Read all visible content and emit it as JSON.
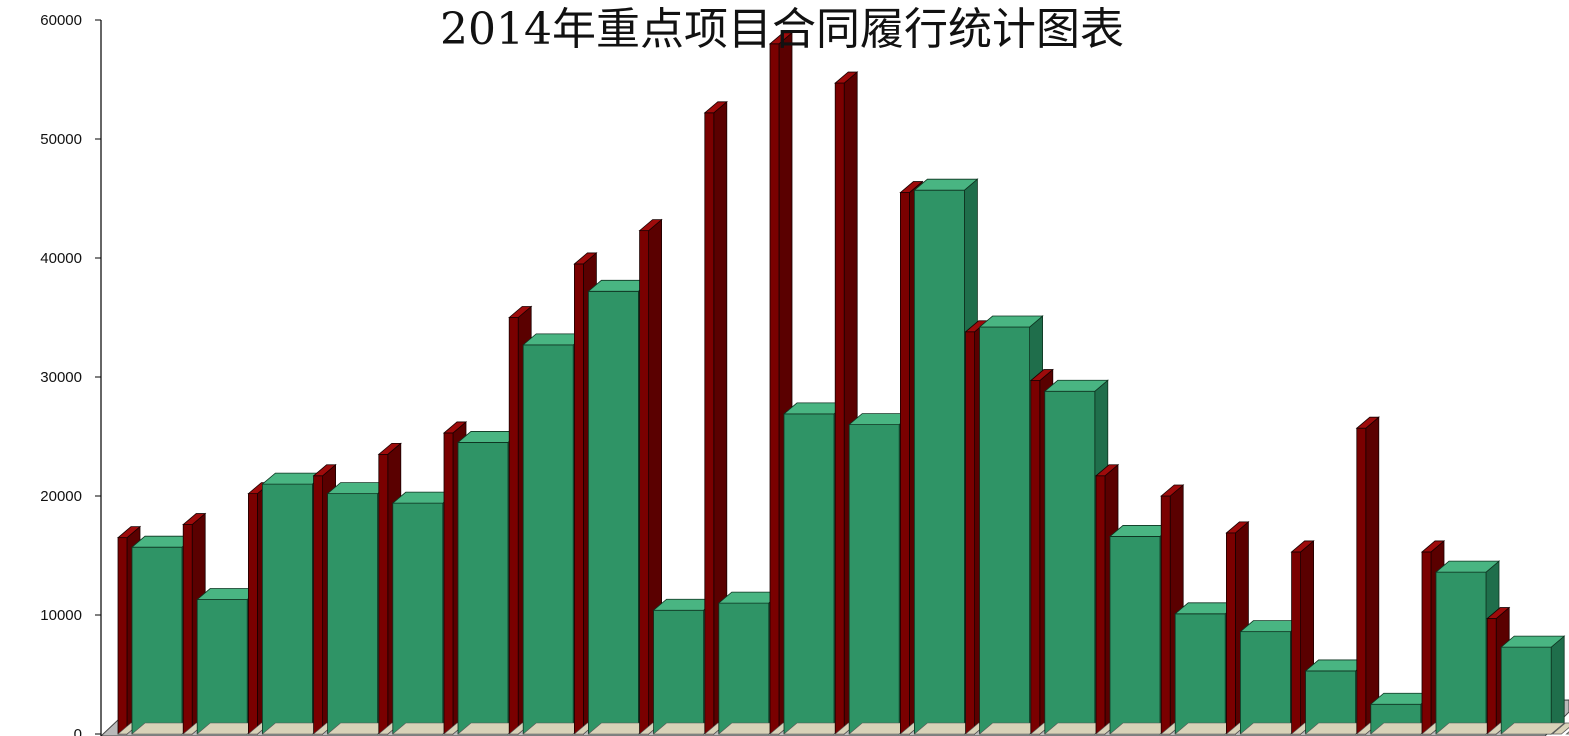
{
  "chart_data": {
    "type": "bar",
    "title": "2014年重点项目合同履行统计图表",
    "xlabel": "",
    "ylabel": "",
    "ylim": [
      0,
      60000
    ],
    "yticks": [
      0,
      10000,
      20000,
      30000,
      40000,
      50000,
      60000
    ],
    "grid": false,
    "legend": "none",
    "categories": [
      "",
      "",
      "",
      "",
      "",
      "",
      "",
      "",
      "",
      "",
      "",
      "",
      "",
      "",
      "",
      "",
      "",
      "",
      "",
      "",
      "",
      "",
      ""
    ],
    "series": [
      {
        "color": "#7a0000",
        "values": [
          16500,
          17600,
          20200,
          21700,
          23500,
          25300,
          35000,
          39500,
          42300,
          52200,
          58000,
          54700,
          45500,
          33800,
          29700,
          21700,
          20000,
          16900,
          15300,
          25700,
          15300,
          9700,
          0
        ]
      },
      {
        "color": "#2f9466",
        "values": [
          15700,
          11300,
          21000,
          20200,
          19400,
          24500,
          32700,
          37200,
          10400,
          11000,
          26900,
          26000,
          45700,
          34200,
          28800,
          16600,
          10100,
          8600,
          5300,
          2500,
          13600,
          7300,
          0
        ]
      }
    ]
  }
}
